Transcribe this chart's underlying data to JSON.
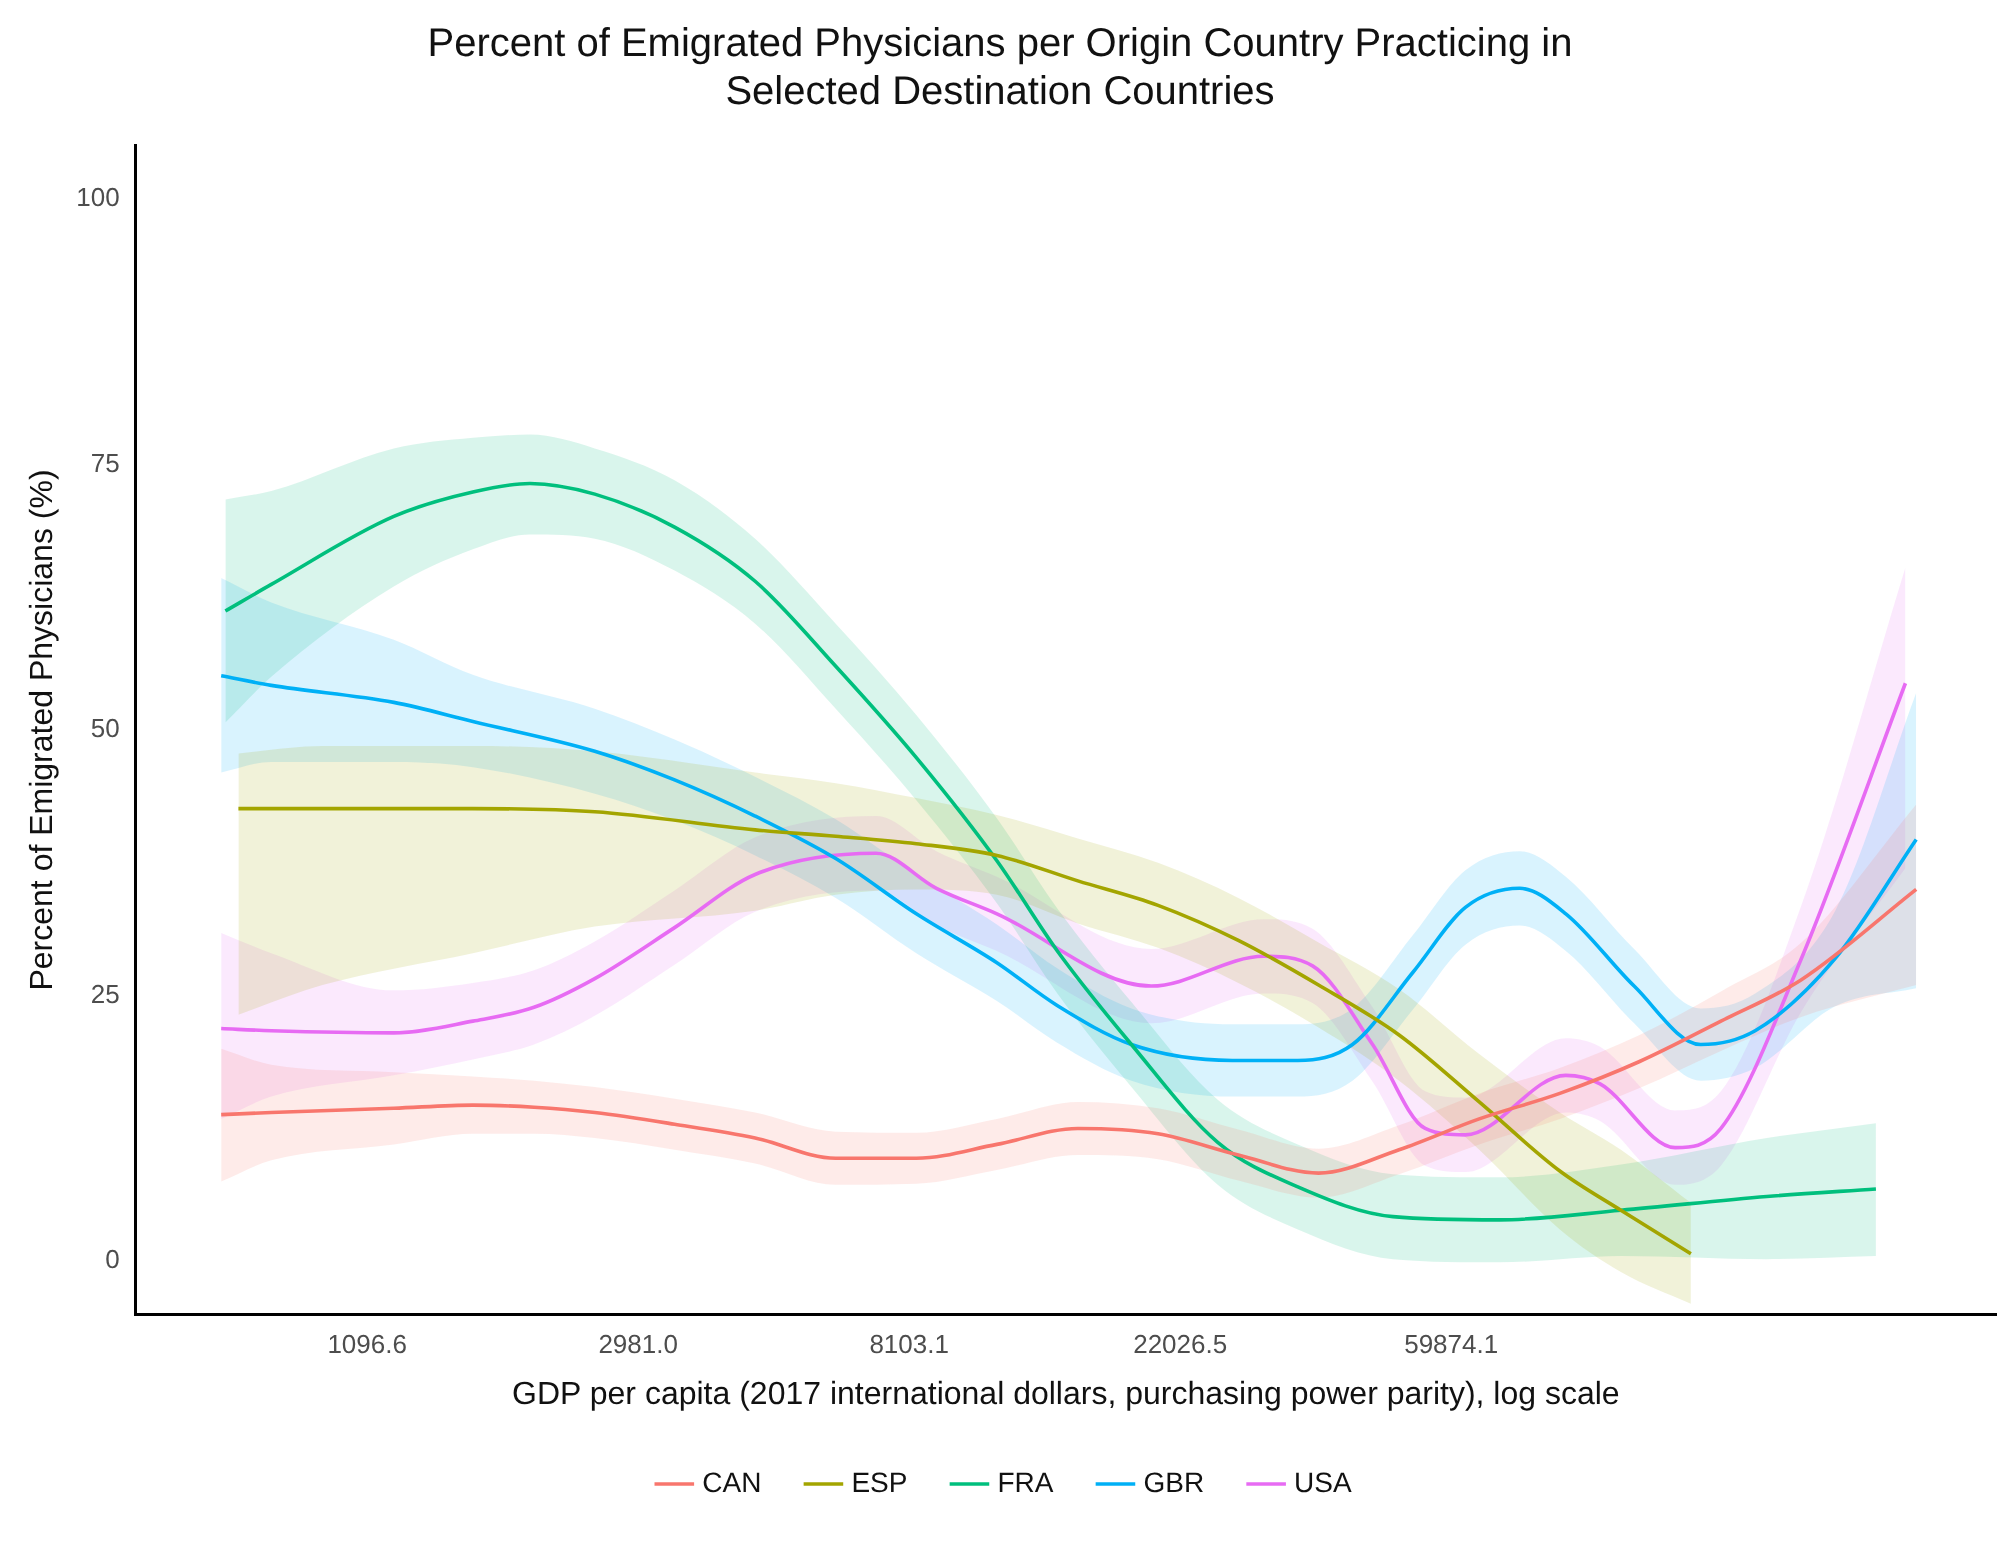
{
  "chart_data": {
    "type": "line",
    "title": "Percent of Emigrated Physicians per Origin Country Practicing in Selected Destination Countries",
    "xlabel": "GDP per capita (2017 international dollars, purchasing power parity), log scale",
    "ylabel": "Percent of Emigrated Physicians (%)",
    "log": "x",
    "grid": false,
    "legend": "bottom",
    "marker": "none",
    "line_style": "solid",
    "xlim": [
      467,
      447000
    ],
    "xticks": [
      1096.6,
      {
        "value": 2981.0,
        "label": "2981.0"
      },
      8103.1,
      22026.5,
      59874.1
    ],
    "ylim": [
      -5,
      105
    ],
    "yticks": [
      0,
      25,
      50,
      75,
      100
    ],
    "series": [
      {
        "name": "CAN",
        "color": "#f8766d",
        "x": [
          640,
          770,
          1210,
          1620,
          2030,
          2540,
          3410,
          4590,
          6180,
          8320,
          11200,
          15100,
          20300,
          27300,
          36700,
          49400,
          66400,
          89400,
          120000,
          162000,
          218000,
          333000
        ],
        "values": [
          13.8,
          14.0,
          14.4,
          14.7,
          14.5,
          14.0,
          12.9,
          11.6,
          9.7,
          9.7,
          11.0,
          12.5,
          12.0,
          10.0,
          8.3,
          10.5,
          13.4,
          15.8,
          18.8,
          22.6,
          26.5,
          35.0
        ],
        "lower": [
          7.5,
          9.5,
          11,
          12,
          12,
          11.6,
          10.5,
          9.2,
          7.2,
          7.3,
          8.6,
          10,
          9.6,
          7.6,
          6,
          8.2,
          11,
          13.4,
          16.3,
          19.8,
          23,
          26
        ],
        "upper": [
          20,
          18.5,
          17.8,
          17.4,
          17,
          16.4,
          15.3,
          14,
          12.2,
          12.1,
          13.4,
          15,
          14.4,
          12.4,
          10.6,
          12.8,
          15.8,
          18.2,
          21.3,
          25.4,
          30,
          43
        ]
      },
      {
        "name": "ESP",
        "color": "#a3a500",
        "x": [
          682,
          930,
          1620,
          2540,
          4590,
          6180,
          8320,
          11200,
          15100,
          20300,
          27300,
          36700,
          49400,
          66400,
          89400,
          112000,
          145000
        ],
        "values": [
          42.6,
          42.6,
          42.6,
          42.3,
          40.6,
          40.0,
          39.3,
          38.2,
          35.8,
          33.5,
          30.2,
          26.0,
          21.3,
          15.0,
          8.5,
          4.8,
          0.7
        ],
        "lower": [
          23.2,
          26,
          29,
          31.5,
          33,
          34.5,
          35,
          34.5,
          31.8,
          29.5,
          26.2,
          22,
          17,
          10.5,
          3,
          -1,
          -4
        ],
        "upper": [
          47.8,
          48.5,
          48.5,
          48,
          46,
          45,
          43.6,
          42,
          39.8,
          37.5,
          34.2,
          30,
          25.6,
          19.5,
          14,
          10.5,
          5.5
        ]
      },
      {
        "name": "FRA",
        "color": "#00bf7d",
        "x": [
          650,
          770,
          1210,
          1620,
          2000,
          2540,
          3410,
          4590,
          6180,
          8320,
          11200,
          14000,
          18400,
          25300,
          34000,
          48300,
          71600,
          112000,
          191900,
          287000
        ],
        "values": [
          61.2,
          63.7,
          70.1,
          72.4,
          73.2,
          72.2,
          69.1,
          64.0,
          56.0,
          47.4,
          37.7,
          29.2,
          20.4,
          11.2,
          7.0,
          4.2,
          3.9,
          4.8,
          6.1,
          6.8
        ],
        "lower": [
          50.7,
          55,
          63.5,
          67,
          68.4,
          68,
          65,
          60,
          52,
          43.4,
          33.7,
          25.2,
          16.4,
          7.2,
          3,
          0.2,
          -0.1,
          0.5,
          0.2,
          0.5
        ],
        "upper": [
          71.7,
          72.5,
          76.5,
          77.5,
          77.8,
          76.5,
          73.5,
          68,
          60,
          51.4,
          41.7,
          33.2,
          24.4,
          15.2,
          11,
          8.2,
          7.9,
          9.1,
          11.6,
          13
        ]
      },
      {
        "name": "GBR",
        "color": "#00b0f6",
        "x": [
          640,
          770,
          1210,
          1620,
          2540,
          3410,
          4590,
          6180,
          8320,
          11200,
          13970,
          18400,
          26700,
          34000,
          41600,
          52000,
          63100,
          77100,
          91400,
          117600,
          150300,
          183800,
          247000,
          333000
        ],
        "values": [
          55.1,
          54.2,
          52.6,
          50.8,
          48.0,
          45.3,
          41.9,
          37.9,
          32.7,
          28.1,
          24.1,
          20.4,
          18.9,
          18.9,
          20.4,
          27.2,
          33.3,
          35.1,
          32.7,
          25.9,
          20.4,
          21.7,
          28.5,
          39.7
        ],
        "lower": [
          46,
          47,
          47,
          46.5,
          44,
          41.5,
          38.2,
          34.2,
          29,
          24.5,
          20.6,
          17,
          15.5,
          15.5,
          17,
          23.7,
          29.8,
          31.6,
          29.2,
          22.4,
          17,
          18.2,
          24,
          25.7
        ],
        "upper": [
          64.3,
          62,
          58.5,
          55.2,
          52,
          49.1,
          45.6,
          41.6,
          36.4,
          31.7,
          27.6,
          23.8,
          22.3,
          22.3,
          23.8,
          30.7,
          36.8,
          38.6,
          36.2,
          29.4,
          23.8,
          25.2,
          33,
          53.5
        ]
      },
      {
        "name": "USA",
        "color": "#e76bf3",
        "x": [
          640,
          770,
          1210,
          1620,
          2030,
          2540,
          3410,
          4590,
          7170,
          8960,
          11200,
          19800,
          30000,
          35900,
          44800,
          54400,
          63100,
          91400,
          103700,
          136800,
          162000,
          218000,
          320000
        ],
        "values": [
          21.9,
          21.7,
          21.5,
          22.6,
          23.9,
          26.6,
          31.4,
          36.4,
          38.4,
          35.1,
          32.7,
          25.9,
          28.7,
          27.8,
          20.4,
          12.5,
          11.9,
          17.5,
          16.7,
          10.7,
          12.5,
          28.5,
          54.4
        ],
        "lower": [
          13.4,
          15.5,
          17.5,
          19,
          20.4,
          23.1,
          27.9,
          32.9,
          34.9,
          31.6,
          29.2,
          22.4,
          25.2,
          24.3,
          16.9,
          9,
          8.4,
          14,
          13.2,
          7.2,
          9,
          23.5,
          37
        ],
        "upper": [
          30.9,
          29,
          25.5,
          26.2,
          27.4,
          30.1,
          34.9,
          39.9,
          41.9,
          38.6,
          36.2,
          29.4,
          32.2,
          31.3,
          23.9,
          16,
          15.4,
          21,
          20.2,
          14.2,
          16,
          33.5,
          65.3
        ]
      }
    ]
  }
}
